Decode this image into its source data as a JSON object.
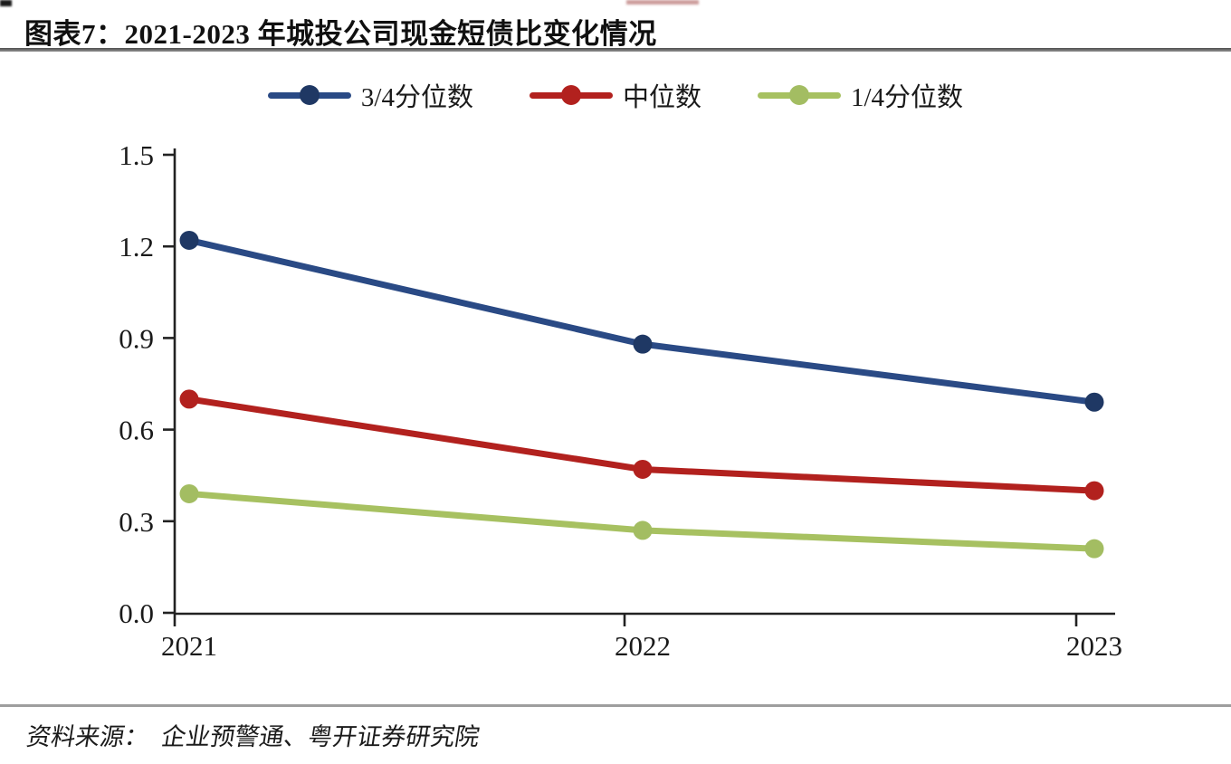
{
  "header": {
    "title": "图表7：2021-2023 年城投公司现金短债比变化情况"
  },
  "footer": {
    "source_label": "资料来源：",
    "source_text": "企业预警通、粤开证券研究院"
  },
  "chart_data": {
    "type": "line",
    "title": "图表7：2021-2023 年城投公司现金短债比变化情况",
    "categories": [
      "2021",
      "2022",
      "2023"
    ],
    "series": [
      {
        "name": "3/4分位数",
        "marker_color": "#1f3864",
        "line_color": "#2a4a85",
        "values": [
          1.22,
          0.88,
          0.69
        ]
      },
      {
        "name": "中位数",
        "marker_color": "#b2211e",
        "line_color": "#b2211e",
        "values": [
          0.7,
          0.47,
          0.4
        ]
      },
      {
        "name": "1/4分位数",
        "marker_color": "#a3bd62",
        "line_color": "#a7c161",
        "values": [
          0.39,
          0.27,
          0.21
        ]
      }
    ],
    "ylim": [
      0,
      1.5
    ],
    "ytick_labels": [
      "0.0",
      "0.3",
      "0.6",
      "0.9",
      "1.2",
      "1.5"
    ],
    "xlabel": "",
    "ylabel": "",
    "grid": false,
    "legend_position": "top",
    "axis_color": "#222222",
    "tick_label_color": "#1a1a1a"
  }
}
